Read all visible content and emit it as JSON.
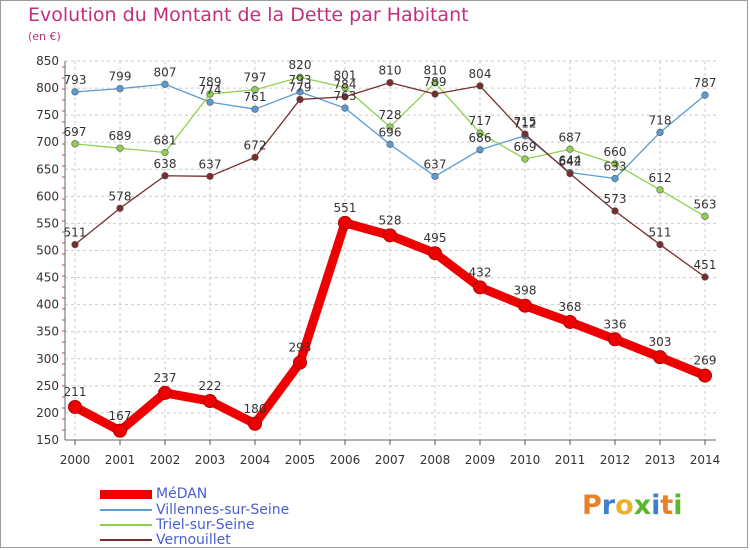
{
  "title": "Evolution du Montant de la Dette par Habitant",
  "unit": "(en €)",
  "logo_text": "Proxiti",
  "logo_colors": [
    "#e8812a",
    "#3e7fd0",
    "#e8b32a",
    "#5bb82e",
    "#3e7fd0",
    "#e8812a",
    "#5bb82e"
  ],
  "chart_data": {
    "type": "line",
    "x": [
      "2000",
      "2001",
      "2002",
      "2003",
      "2004",
      "2005",
      "2006",
      "2007",
      "2008",
      "2009",
      "2010",
      "2011",
      "2012",
      "2013",
      "2014"
    ],
    "ylim": [
      150,
      850
    ],
    "yticks": [
      "850",
      "800",
      "750",
      "700",
      "650",
      "600",
      "550",
      "500",
      "450",
      "400",
      "350",
      "300",
      "250",
      "200",
      "150"
    ],
    "grid": true,
    "legend_position": "bottom-left",
    "series": [
      {
        "name": "MéDAN",
        "color": "#ee0000",
        "values": [
          211,
          167,
          237,
          222,
          180,
          293,
          551,
          528,
          495,
          432,
          398,
          368,
          336,
          303,
          269
        ],
        "labels": [
          "211",
          "167",
          "237",
          "222",
          "180",
          "293",
          "551",
          "528",
          "495",
          "432",
          "398",
          "368",
          "336",
          "303",
          "269"
        ]
      },
      {
        "name": "Villennes-sur-Seine",
        "color": "#5b9bd5",
        "values": [
          793,
          799,
          807,
          774,
          761,
          793,
          763,
          696,
          637,
          686,
          712,
          644,
          633,
          718,
          787
        ],
        "labels": [
          "793",
          "799",
          "807",
          "774",
          "761",
          "793",
          "763",
          "696",
          "637",
          "686",
          "712",
          "644",
          "633",
          "718",
          "787"
        ]
      },
      {
        "name": "Triel-sur-Seine",
        "color": "#8fd14f",
        "values": [
          697,
          689,
          681,
          789,
          797,
          820,
          801,
          728,
          810,
          717,
          669,
          687,
          660,
          612,
          563
        ],
        "labels": [
          "697",
          "689",
          "681",
          "789",
          "797",
          "820",
          "801",
          "728",
          "810",
          "717",
          "669",
          "687",
          "660",
          "612",
          "563"
        ]
      },
      {
        "name": "Vernouillet",
        "color": "#7b2c2c",
        "values": [
          511,
          578,
          638,
          637,
          672,
          779,
          784,
          810,
          789,
          804,
          715,
          642,
          573,
          511,
          451
        ],
        "labels": [
          "511",
          "578",
          "638",
          "637",
          "672",
          "779",
          "784",
          "810",
          "789",
          "804",
          "715",
          "642",
          "573",
          "511",
          "451"
        ]
      }
    ]
  }
}
